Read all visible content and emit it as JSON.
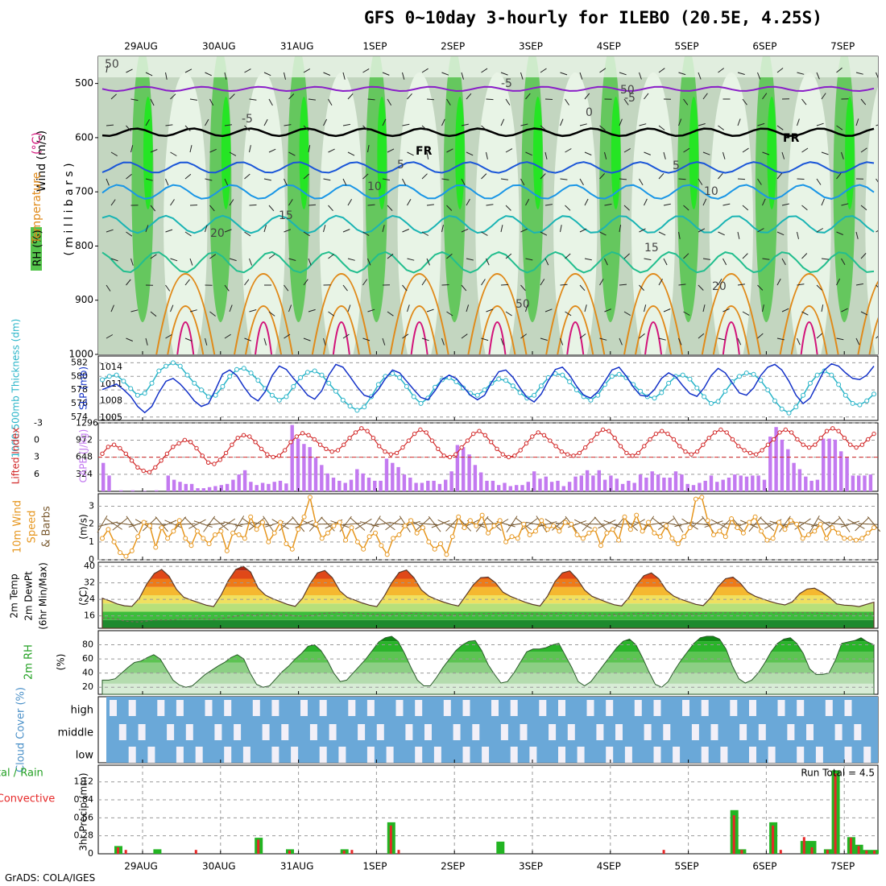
{
  "title": "GFS 0~10day 3-hourly for ILEBO (20.5E, 4.25S)",
  "credit": "GrADS: COLA/IGES",
  "colors": {
    "rh_light": "#e8f4e6",
    "rh_mid": "#c3d6c0",
    "rh_dark": "#9fb59c",
    "rh_green": "#55c44c",
    "rh_bright": "#1ee81e",
    "temp_purple": "#8a1ec8",
    "temp_blue": "#1a56d8",
    "temp_lightblue": "#1a96e6",
    "temp_teal": "#1ab4b4",
    "temp_green": "#22be8e",
    "temp_orange": "#e08a1a",
    "temp_magenta": "#d2147a",
    "slp": "#1432c8",
    "thickness": "#28b4c8",
    "cape": "#c37af0",
    "lifted": "#d22828",
    "wind10": "#e6961e",
    "precip_total": "#22b422",
    "precip_conv": "#e62828",
    "cloud": "#6aa8d8",
    "cloud_gap": "#f2f0f8"
  },
  "chart_data": [
    {
      "type": "heatmap",
      "name": "RH / Temperature / Wind cross-section",
      "ylabel_parts": [
        "RH (%)",
        "Temperature (°C)",
        "Wind (m/s)"
      ],
      "ylabel_units": "( m i l l i b a r s )",
      "yticks": [
        500,
        600,
        700,
        800,
        900,
        1000
      ],
      "ylim": [
        450,
        1000
      ],
      "x_dates_top": [
        "29AUG",
        "30AUG",
        "31AUG",
        "1SEP",
        "2SEP",
        "3SEP",
        "4SEP",
        "5SEP",
        "6SEP",
        "7SEP"
      ],
      "contour_labels": [
        "-5",
        "-5",
        "-5",
        "0",
        "FR",
        "FR",
        "5",
        "5",
        "10",
        "10",
        "15",
        "15",
        "20",
        "20",
        "50",
        "50",
        "50"
      ],
      "temperature_levels_hpa": [
        {
          "label": "-5",
          "mean_level": 510
        },
        {
          "label": "0",
          "mean_level": 590
        },
        {
          "label": "5",
          "mean_level": 655
        },
        {
          "label": "10",
          "mean_level": 700
        },
        {
          "label": "15",
          "mean_level": 760
        },
        {
          "label": "20",
          "mean_level": 830
        }
      ]
    },
    {
      "type": "line",
      "name": "Thickness and SLP",
      "ylabel_left": "1000-500mb Thickness (dm)",
      "ylabel_right": "SLP (mb)",
      "yticks_left": [
        574,
        576,
        578,
        580,
        582
      ],
      "yticks_right": [
        1005,
        1008,
        1011,
        1014
      ],
      "thickness_dm": [
        579.5,
        580.0,
        580.2,
        579.3,
        578.2,
        577.2,
        577.5,
        579.0,
        580.8,
        581.5,
        582.0,
        581.5,
        580.2,
        579.0,
        578.0,
        577.0,
        577.2,
        578.5,
        580.0,
        581.0,
        581.2,
        580.5,
        579.4,
        578.2,
        577.2,
        576.5,
        577.0,
        578.5,
        579.8,
        580.6,
        580.8,
        580.2,
        579.0,
        577.8,
        576.5,
        575.6,
        575.0,
        575.5,
        577.0,
        578.8,
        580.0,
        580.4,
        579.8,
        578.5,
        577.0,
        576.0,
        576.8,
        578.4,
        579.5,
        579.8,
        579.2,
        578.3,
        577.5,
        577.2,
        578.0,
        579.0,
        579.6,
        579.4,
        578.6,
        577.6,
        576.8,
        577.2,
        578.6,
        579.8,
        580.4,
        580.2,
        579.2,
        578.0,
        577.0,
        576.5,
        577.2,
        578.8,
        580.0,
        580.3,
        579.8,
        578.8,
        577.8,
        577.0,
        576.8,
        577.6,
        579.0,
        580.0,
        580.2,
        579.6,
        578.3,
        577.0,
        576.0,
        576.3,
        577.8,
        579.2,
        580.0,
        580.5,
        580.3,
        579.4,
        578.0,
        576.4,
        575.2,
        574.6,
        575.5,
        577.2,
        579.0,
        580.2,
        580.8,
        580.2,
        578.8,
        577.2,
        576.0,
        575.8,
        576.4,
        577.4
      ],
      "slp_mb": [
        1010.0,
        1010.5,
        1011.0,
        1010.0,
        1008.8,
        1007.0,
        1005.9,
        1007.0,
        1009.5,
        1011.5,
        1012.0,
        1011.0,
        1009.6,
        1008.0,
        1007.0,
        1007.5,
        1010.0,
        1012.8,
        1013.5,
        1012.5,
        1010.5,
        1008.8,
        1008.0,
        1009.6,
        1012.5,
        1014.2,
        1013.6,
        1012.0,
        1010.6,
        1009.0,
        1008.3,
        1009.8,
        1012.6,
        1014.5,
        1014.0,
        1012.3,
        1010.5,
        1009.0,
        1008.6,
        1010.0,
        1012.0,
        1013.5,
        1013.0,
        1011.5,
        1010.0,
        1008.6,
        1008.2,
        1009.8,
        1011.8,
        1012.6,
        1012.0,
        1010.5,
        1009.0,
        1008.2,
        1009.0,
        1011.3,
        1013.2,
        1013.5,
        1012.2,
        1010.3,
        1008.6,
        1007.8,
        1009.2,
        1011.6,
        1013.6,
        1014.0,
        1012.6,
        1010.6,
        1009.0,
        1008.5,
        1009.6,
        1011.5,
        1013.5,
        1014.0,
        1012.4,
        1010.5,
        1009.0,
        1008.8,
        1010.0,
        1012.0,
        1013.0,
        1012.3,
        1010.7,
        1009.3,
        1008.8,
        1010.3,
        1012.5,
        1013.8,
        1013.0,
        1011.2,
        1009.4,
        1009.0,
        1010.3,
        1012.5,
        1014.0,
        1014.5,
        1013.5,
        1011.5,
        1009.0,
        1007.5,
        1008.5,
        1011.0,
        1013.5,
        1014.6,
        1014.2,
        1013.0,
        1012.0,
        1011.8,
        1012.6,
        1014.2
      ]
    },
    {
      "type": "bar",
      "name": "CAPE and Lifted Index",
      "ylabel_left": "Lifted Index",
      "ylabel_right": "CAPE (J/kg)",
      "yticks_left": [
        "-3",
        "0",
        "3",
        "6"
      ],
      "yticks_right": [
        324,
        648,
        972,
        1296
      ],
      "cape_jkg": [
        540,
        300,
        0,
        20,
        0,
        20,
        0,
        10,
        0,
        20,
        0,
        300,
        220,
        180,
        140,
        140,
        60,
        60,
        80,
        100,
        120,
        140,
        220,
        320,
        400,
        180,
        120,
        160,
        140,
        180,
        200,
        150,
        1260,
        1000,
        900,
        840,
        640,
        500,
        340,
        260,
        200,
        160,
        220,
        420,
        340,
        260,
        200,
        200,
        620,
        540,
        460,
        320,
        260,
        160,
        160,
        200,
        200,
        140,
        220,
        380,
        880,
        840,
        700,
        500,
        360,
        200,
        200,
        120,
        160,
        100,
        120,
        120,
        180,
        380,
        240,
        280,
        180,
        200,
        100,
        180,
        280,
        300,
        400,
        300,
        400,
        220,
        300,
        240,
        140,
        200,
        160,
        320,
        260,
        380,
        320,
        260,
        260,
        380,
        320,
        140,
        120,
        160,
        200,
        300,
        180,
        220,
        260,
        320,
        300,
        280,
        300,
        300,
        220,
        1040,
        1220,
        980,
        800,
        540,
        420,
        280,
        200,
        220,
        1000,
        1000,
        980,
        760,
        640,
        300,
        300,
        300,
        320
      ],
      "lifted_index": [
        0.5,
        -0.5,
        -0.8,
        -0.3,
        0.5,
        1.5,
        2.5,
        3.0,
        3.2,
        2.5,
        1.5,
        0.5,
        -0.5,
        -1.0,
        -1.5,
        -1.2,
        -0.3,
        0.8,
        1.8,
        2.0,
        1.4,
        0.4,
        -0.8,
        -1.8,
        -2.2,
        -2.0,
        -1.2,
        -0.2,
        0.6,
        1.0,
        0.8,
        0.0,
        -1.2,
        -2.0,
        -2.5,
        -2.2,
        -1.6,
        -0.8,
        -0.2,
        0.2,
        0.0,
        -0.8,
        -1.8,
        -2.6,
        -3.2,
        -2.8,
        -1.8,
        -0.6,
        0.2,
        0.6,
        0.4,
        -0.4,
        -1.4,
        -2.4,
        -3.0,
        -2.6,
        -1.4,
        -0.2,
        0.8,
        1.0,
        0.6,
        -0.4,
        -1.4,
        -2.4,
        -2.8,
        -2.2,
        -1.2,
        -0.2,
        0.6,
        1.0,
        0.8,
        0.0,
        -1.0,
        -2.0,
        -2.6,
        -2.2,
        -1.4,
        -0.6,
        0.2,
        0.6,
        0.8,
        0.4,
        -0.4,
        -1.4,
        -2.4,
        -3.0,
        -2.8,
        -1.8,
        -0.6,
        0.4,
        0.8,
        0.4,
        -0.6,
        -1.6,
        -2.4,
        -2.8,
        -2.4,
        -1.6,
        -0.6,
        0.2,
        0.6,
        0.2,
        -0.8,
        -1.8,
        -2.6,
        -3.0,
        -2.6,
        -1.6,
        -0.6,
        0.0,
        0.4,
        0.6,
        0.0,
        -0.8,
        -1.6,
        -2.6,
        -3.0,
        -2.6,
        -1.6,
        -0.8,
        -0.4,
        -0.8,
        -1.8,
        -2.8,
        -3.2,
        -2.8,
        -1.8,
        -0.8,
        -0.4,
        -0.8,
        -1.6,
        -2.4
      ]
    },
    {
      "type": "line",
      "name": "10m Wind Speed & Barbs",
      "ylabel": "10m Wind Speed & Barbs (m/s)",
      "yticks": [
        0,
        1,
        2,
        3
      ],
      "speed_ms": [
        1.2,
        1.7,
        1.0,
        0.4,
        0.2,
        0.5,
        1.3,
        2.1,
        1.9,
        0.7,
        1.8,
        1.2,
        1.6,
        2.2,
        1.2,
        0.8,
        1.6,
        1.2,
        0.9,
        1.4,
        1.6,
        0.5,
        1.5,
        1.4,
        1.2,
        2.4,
        1.7,
        2.1,
        1.0,
        1.5,
        2.1,
        0.9,
        0.6,
        1.7,
        2.4,
        3.5,
        2.0,
        1.2,
        1.5,
        1.9,
        2.1,
        1.1,
        1.8,
        1.0,
        0.6,
        1.3,
        1.5,
        0.8,
        0.3,
        1.2,
        1.4,
        1.9,
        2.2,
        1.5,
        1.8,
        1.0,
        0.6,
        0.9,
        0.3,
        1.3,
        2.4,
        1.8,
        2.2,
        1.9,
        2.5,
        1.5,
        1.9,
        2.2,
        1.0,
        1.3,
        1.2,
        2.0,
        1.4,
        1.6,
        2.2,
        1.7,
        1.9,
        1.6,
        2.1,
        2.0,
        1.4,
        1.2,
        1.5,
        1.7,
        0.8,
        1.5,
        1.7,
        1.1,
        2.4,
        1.7,
        2.5,
        1.6,
        2.1,
        1.5,
        1.3,
        1.9,
        1.2,
        0.9,
        1.3,
        1.8,
        3.4,
        3.5,
        2.2,
        1.4,
        1.6,
        1.3,
        2.3,
        1.8,
        1.5,
        2.1,
        2.4,
        1.6,
        1.1,
        1.2,
        2.1,
        1.7,
        2.2,
        2.0,
        1.2,
        1.4,
        1.6,
        2.0,
        1.2,
        1.8,
        1.5,
        1.2,
        1.2,
        1.1,
        1.2,
        1.5,
        1.8
      ]
    },
    {
      "type": "area",
      "name": "2m Temp / DewPt",
      "ylabel": "2m Temp 2m DewPt (6hr Min/Max) (°C)",
      "yticks": [
        16,
        24,
        32,
        40
      ],
      "temp_c": [
        24.5,
        23.3,
        21.8,
        20.9,
        20.6,
        24.6,
        31.5,
        36.5,
        38.5,
        35.2,
        28.8,
        25.0,
        23.6,
        22.4,
        21.2,
        20.5,
        26.0,
        33.2,
        38.5,
        40.0,
        37.2,
        29.5,
        26.0,
        24.3,
        22.9,
        21.5,
        20.6,
        24.6,
        31.5,
        36.8,
        38.0,
        34.5,
        28.2,
        25.0,
        23.7,
        22.3,
        21.2,
        20.5,
        25.5,
        32.0,
        37.0,
        38.2,
        34.5,
        28.6,
        25.6,
        24.0,
        22.7,
        21.6,
        20.8,
        25.8,
        31.0,
        34.5,
        34.8,
        32.0,
        27.5,
        25.5,
        24.0,
        22.6,
        21.5,
        20.8,
        25.5,
        32.5,
        36.8,
        37.8,
        34.0,
        28.5,
        25.5,
        24.0,
        22.6,
        21.4,
        20.8,
        25.0,
        31.0,
        35.5,
        36.8,
        34.0,
        28.5,
        25.6,
        24.0,
        22.8,
        21.6,
        21.0,
        24.8,
        30.2,
        34.0,
        34.8,
        31.8,
        27.5,
        25.5,
        24.2,
        23.0,
        22.0,
        21.3,
        22.8,
        26.8,
        29.0,
        29.4,
        27.5,
        25.0,
        21.8,
        21.2,
        21.0,
        20.5,
        21.6,
        22.6
      ],
      "dewpt_c": [
        15.0,
        14.8,
        14.5,
        13.5,
        13.2,
        13.0,
        13.5,
        14.0,
        14.0,
        14.0,
        14.2,
        14.5,
        14.5,
        14.6,
        14.5,
        14.2,
        14.6,
        15.2,
        15.8,
        16.5,
        16.5,
        16.5,
        16.8,
        17.0,
        16.8,
        16.5,
        16.0,
        15.8,
        16.2,
        16.8,
        17.2,
        17.5,
        17.6,
        17.5,
        17.3,
        17.1,
        16.9,
        16.7,
        16.6,
        16.8,
        17.0,
        17.2,
        17.2,
        17.1,
        17.0,
        16.8,
        16.7,
        16.6,
        16.7,
        16.8,
        17.0,
        17.1,
        17.1,
        17.2,
        17.3,
        17.3,
        17.2,
        17.1,
        17.0,
        16.9,
        17.0,
        17.2,
        17.3,
        17.3,
        17.2,
        17.1,
        17.0,
        16.9,
        16.8,
        16.8,
        16.9,
        17.0,
        17.1,
        17.2,
        17.2,
        17.2,
        17.1,
        17.0,
        16.9,
        16.9,
        17.0,
        17.2,
        17.4,
        17.5,
        17.5,
        17.5,
        17.5,
        17.5,
        17.5,
        17.5,
        17.5,
        17.5,
        17.5,
        17.5,
        17.5,
        17.5,
        17.4,
        17.2,
        17.1,
        17.0,
        17.0,
        17.0,
        17.0,
        17.0,
        17.0
      ]
    },
    {
      "type": "area",
      "name": "2m RH",
      "ylabel": "2m RH (%)",
      "yticks": [
        20,
        40,
        60,
        80
      ],
      "rh_pct": [
        30,
        30,
        32,
        40,
        48,
        55,
        57,
        62,
        66,
        60,
        45,
        30,
        23,
        20,
        22,
        30,
        38,
        44,
        50,
        55,
        62,
        66,
        60,
        40,
        24,
        20,
        22,
        32,
        42,
        50,
        60,
        68,
        78,
        80,
        72,
        58,
        40,
        28,
        30,
        40,
        50,
        60,
        72,
        84,
        90,
        92,
        85,
        68,
        48,
        30,
        22,
        22,
        34,
        48,
        60,
        72,
        80,
        85,
        86,
        72,
        52,
        38,
        26,
        28,
        40,
        55,
        70,
        74,
        74,
        76,
        80,
        82,
        65,
        48,
        28,
        22,
        28,
        40,
        52,
        64,
        76,
        85,
        88,
        80,
        62,
        42,
        24,
        20,
        28,
        44,
        58,
        70,
        82,
        90,
        92,
        92,
        88,
        74,
        50,
        32,
        26,
        30,
        40,
        54,
        70,
        82,
        88,
        90,
        82,
        68,
        46,
        38,
        38,
        40,
        58,
        82,
        84,
        86,
        90,
        84,
        80
      ],
      "cloud_cover": {
        "ylabel": "Cloud Cover (%)",
        "levels": [
          "high",
          "middle",
          "low"
        ]
      }
    },
    {
      "type": "bar",
      "name": "3hr Precip",
      "ylabel_left": "Total / Rain Convective",
      "ylabel": "3hr Precip (mm)",
      "yticks": [
        0,
        0.28,
        0.56,
        0.84,
        1.12
      ],
      "run_total": "Run Total = 4.5",
      "x_dates_bottom": [
        "29AUG",
        "30AUG",
        "31AUG",
        "1SEP",
        "2SEP",
        "3SEP",
        "4SEP",
        "5SEP",
        "6SEP",
        "7SEP"
      ],
      "precip_bars": [
        {
          "day": 0.0,
          "total": 0.12,
          "conv": 0.1
        },
        {
          "day": 0.1,
          "total": 0.0,
          "conv": 0.06
        },
        {
          "day": 0.5,
          "total": 0.07,
          "conv": 0.0
        },
        {
          "day": 1.0,
          "total": 0.0,
          "conv": 0.06
        },
        {
          "day": 1.8,
          "total": 0.25,
          "conv": 0.22
        },
        {
          "day": 2.2,
          "total": 0.07,
          "conv": 0.05
        },
        {
          "day": 2.9,
          "total": 0.07,
          "conv": 0.05
        },
        {
          "day": 3.0,
          "total": 0.0,
          "conv": 0.06
        },
        {
          "day": 3.5,
          "total": 0.49,
          "conv": 0.44
        },
        {
          "day": 3.6,
          "total": 0.0,
          "conv": 0.06
        },
        {
          "day": 4.9,
          "total": 0.19,
          "conv": 0.0
        },
        {
          "day": 7.0,
          "total": 0.0,
          "conv": 0.06
        },
        {
          "day": 7.9,
          "total": 0.68,
          "conv": 0.6
        },
        {
          "day": 8.0,
          "total": 0.07,
          "conv": 0.06
        },
        {
          "day": 8.4,
          "total": 0.49,
          "conv": 0.44
        },
        {
          "day": 8.5,
          "total": 0.0,
          "conv": 0.06
        },
        {
          "day": 8.8,
          "total": 0.2,
          "conv": 0.26
        },
        {
          "day": 8.9,
          "total": 0.2,
          "conv": 0.1
        },
        {
          "day": 9.1,
          "total": 0.07,
          "conv": 0.06
        },
        {
          "day": 9.2,
          "total": 1.3,
          "conv": 1.25
        },
        {
          "day": 9.4,
          "total": 0.26,
          "conv": 0.25
        },
        {
          "day": 9.5,
          "total": 0.14,
          "conv": 0.12
        },
        {
          "day": 9.6,
          "total": 0.06,
          "conv": 0.05
        },
        {
          "day": 9.7,
          "total": 0.06,
          "conv": 0.05
        }
      ]
    }
  ]
}
